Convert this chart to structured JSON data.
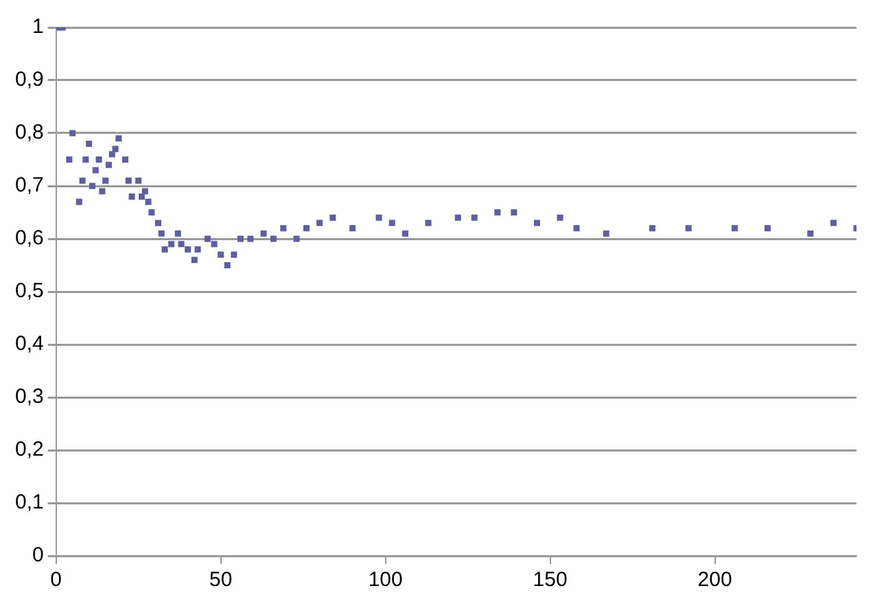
{
  "chart_data": {
    "type": "scatter",
    "marker": "square",
    "grid": "y",
    "legend": false,
    "xlim": [
      0,
      243
    ],
    "xticks": [
      0,
      50,
      100,
      150,
      200
    ],
    "ylim": [
      0,
      1
    ],
    "yticks": [
      0,
      {
        "value": 0.1,
        "label": "0,1"
      },
      {
        "value": 0.2,
        "label": "0,2"
      },
      {
        "value": 0.3,
        "label": "0,3"
      },
      {
        "value": 0.4,
        "label": "0,4"
      },
      {
        "value": 0.5,
        "label": "0,5"
      },
      {
        "value": 0.6,
        "label": "0,6"
      },
      {
        "value": 0.7,
        "label": "0,7"
      },
      {
        "value": 0.8,
        "label": "0,8"
      },
      {
        "value": 0.9,
        "label": "0,9"
      },
      1
    ],
    "series": [
      {
        "color": "#5f5f9f",
        "x": [
          1,
          2,
          4,
          5,
          7,
          8,
          9,
          10,
          11,
          12,
          13,
          14,
          15,
          16,
          17,
          18,
          19,
          21,
          22,
          23,
          25,
          26,
          27,
          28,
          29,
          31,
          32,
          33,
          35,
          37,
          38,
          40,
          42,
          43,
          46,
          48,
          50,
          52,
          54,
          56,
          59,
          63,
          66,
          69,
          73,
          76,
          80,
          84,
          90,
          98,
          102,
          106,
          113,
          122,
          127,
          134,
          139,
          146,
          153,
          158,
          167,
          181,
          192,
          206,
          216,
          229,
          236,
          243
        ],
        "values": [
          1,
          1,
          0.75,
          0.8,
          0.67,
          0.71,
          0.75,
          0.78,
          0.7,
          0.73,
          0.75,
          0.69,
          0.71,
          0.74,
          0.76,
          0.77,
          0.79,
          0.75,
          0.71,
          0.68,
          0.71,
          0.68,
          0.69,
          0.67,
          0.65,
          0.63,
          0.61,
          0.58,
          0.59,
          0.61,
          0.59,
          0.58,
          0.56,
          0.58,
          0.6,
          0.59,
          0.57,
          0.55,
          0.57,
          0.6,
          0.6,
          0.61,
          0.6,
          0.62,
          0.6,
          0.62,
          0.63,
          0.64,
          0.62,
          0.64,
          0.63,
          0.61,
          0.63,
          0.64,
          0.64,
          0.65,
          0.65,
          0.63,
          0.64,
          0.62,
          0.61,
          0.62,
          0.62,
          0.62,
          0.62,
          0.61,
          0.63,
          0.62
        ]
      }
    ]
  }
}
